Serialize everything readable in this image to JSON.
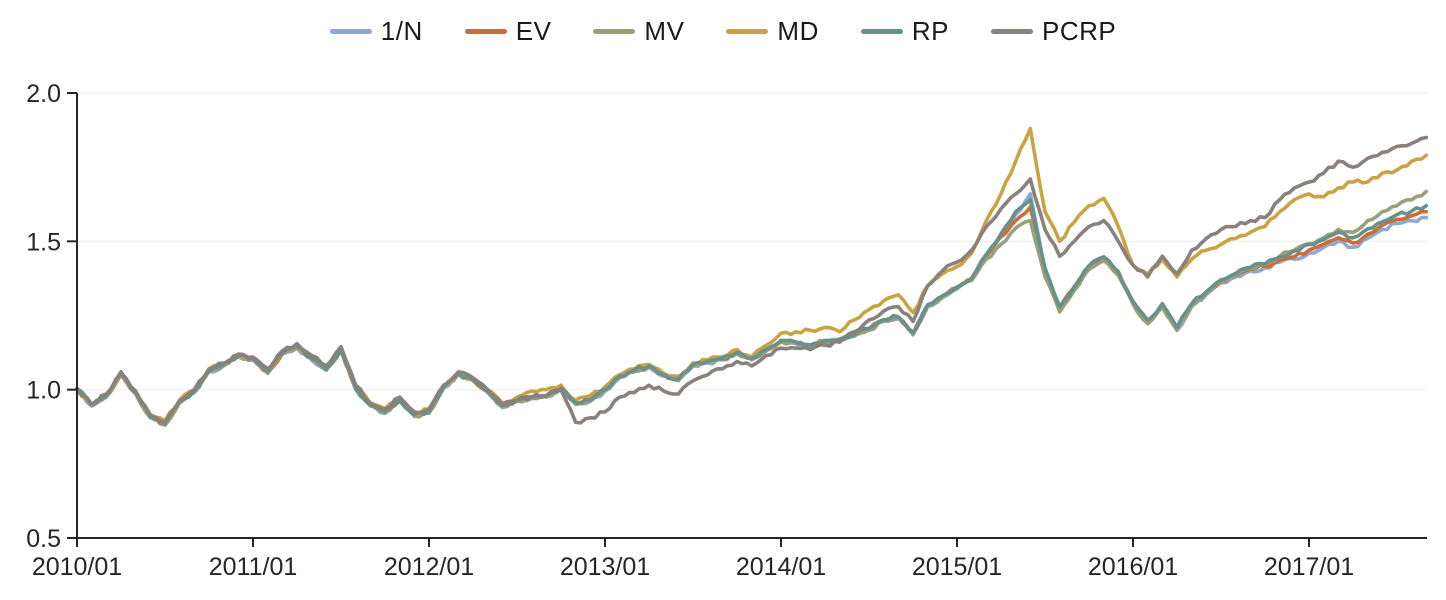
{
  "chart_data": {
    "type": "line",
    "title": "",
    "xlabel": "",
    "ylabel": "",
    "ylim": [
      0.5,
      2.0
    ],
    "grid": "horizontal",
    "legend_position": "top-center",
    "y_ticks": [
      {
        "label": "0.5",
        "value": 0.5
      },
      {
        "label": "1.0",
        "value": 1.0
      },
      {
        "label": "1.5",
        "value": 1.5
      },
      {
        "label": "2.0",
        "value": 2.0
      }
    ],
    "x_ticks": [
      {
        "label": "2010/01",
        "month": 0
      },
      {
        "label": "2011/01",
        "month": 12
      },
      {
        "label": "2012/01",
        "month": 24
      },
      {
        "label": "2013/01",
        "month": 36
      },
      {
        "label": "2014/01",
        "month": 48
      },
      {
        "label": "2015/01",
        "month": 60
      },
      {
        "label": "2016/01",
        "month": 72
      },
      {
        "label": "2017/01",
        "month": 84
      }
    ],
    "x_frequency": "monthly",
    "months": [
      "2010/01",
      "2010/02",
      "2010/03",
      "2010/04",
      "2010/05",
      "2010/06",
      "2010/07",
      "2010/08",
      "2010/09",
      "2010/10",
      "2010/11",
      "2010/12",
      "2011/01",
      "2011/02",
      "2011/03",
      "2011/04",
      "2011/05",
      "2011/06",
      "2011/07",
      "2011/08",
      "2011/09",
      "2011/10",
      "2011/11",
      "2011/12",
      "2012/01",
      "2012/02",
      "2012/03",
      "2012/04",
      "2012/05",
      "2012/06",
      "2012/07",
      "2012/08",
      "2012/09",
      "2012/10",
      "2012/11",
      "2012/12",
      "2013/01",
      "2013/02",
      "2013/03",
      "2013/04",
      "2013/05",
      "2013/06",
      "2013/07",
      "2013/08",
      "2013/09",
      "2013/10",
      "2013/11",
      "2013/12",
      "2014/01",
      "2014/02",
      "2014/03",
      "2014/04",
      "2014/05",
      "2014/06",
      "2014/07",
      "2014/08",
      "2014/09",
      "2014/10",
      "2014/11",
      "2014/12",
      "2015/01",
      "2015/02",
      "2015/03",
      "2015/04",
      "2015/05",
      "2015/06",
      "2015/07",
      "2015/08",
      "2015/09",
      "2015/10",
      "2015/11",
      "2015/12",
      "2016/01",
      "2016/02",
      "2016/03",
      "2016/04",
      "2016/05",
      "2016/06",
      "2016/07",
      "2016/08",
      "2016/09",
      "2016/10",
      "2016/11",
      "2016/12",
      "2017/01",
      "2017/02",
      "2017/03",
      "2017/04",
      "2017/05",
      "2017/06",
      "2017/07",
      "2017/08",
      "2017/09"
    ],
    "series": [
      {
        "name": "1/N",
        "color": "#8EA9D0",
        "values": [
          1.0,
          0.945,
          0.975,
          1.05,
          0.985,
          0.905,
          0.88,
          0.955,
          0.99,
          1.06,
          1.08,
          1.11,
          1.1,
          1.055,
          1.12,
          1.14,
          1.1,
          1.065,
          1.13,
          1.0,
          0.945,
          0.92,
          0.96,
          0.91,
          0.92,
          1.005,
          1.05,
          1.03,
          0.99,
          0.94,
          0.96,
          0.97,
          0.975,
          1.0,
          0.95,
          0.96,
          0.995,
          1.04,
          1.06,
          1.075,
          1.045,
          1.03,
          1.08,
          1.09,
          1.1,
          1.12,
          1.1,
          1.13,
          1.16,
          1.155,
          1.145,
          1.16,
          1.165,
          1.18,
          1.2,
          1.23,
          1.24,
          1.185,
          1.28,
          1.31,
          1.34,
          1.37,
          1.45,
          1.52,
          1.59,
          1.66,
          1.4,
          1.27,
          1.34,
          1.41,
          1.44,
          1.39,
          1.29,
          1.225,
          1.28,
          1.2,
          1.28,
          1.32,
          1.36,
          1.38,
          1.4,
          1.41,
          1.43,
          1.44,
          1.46,
          1.48,
          1.5,
          1.48,
          1.51,
          1.54,
          1.56,
          1.57,
          1.58
        ]
      },
      {
        "name": "EV",
        "color": "#CA6D39",
        "values": [
          1.002,
          0.948,
          0.978,
          1.052,
          0.988,
          0.908,
          0.884,
          0.958,
          0.993,
          1.063,
          1.083,
          1.112,
          1.103,
          1.058,
          1.122,
          1.143,
          1.103,
          1.068,
          1.133,
          1.004,
          0.948,
          0.924,
          0.963,
          0.914,
          0.924,
          1.008,
          1.053,
          1.033,
          0.993,
          0.944,
          0.963,
          0.974,
          0.978,
          1.003,
          0.954,
          0.964,
          0.999,
          1.044,
          1.064,
          1.078,
          1.049,
          1.034,
          1.083,
          1.094,
          1.104,
          1.124,
          1.104,
          1.134,
          1.164,
          1.159,
          1.149,
          1.164,
          1.169,
          1.184,
          1.204,
          1.234,
          1.244,
          1.19,
          1.284,
          1.314,
          1.344,
          1.374,
          1.452,
          1.515,
          1.57,
          1.615,
          1.402,
          1.275,
          1.344,
          1.414,
          1.444,
          1.394,
          1.294,
          1.23,
          1.285,
          1.205,
          1.285,
          1.325,
          1.365,
          1.386,
          1.406,
          1.416,
          1.437,
          1.448,
          1.47,
          1.49,
          1.512,
          1.494,
          1.524,
          1.554,
          1.574,
          1.586,
          1.6
        ]
      },
      {
        "name": "MV",
        "color": "#9BA07A",
        "values": [
          1.001,
          0.947,
          0.977,
          1.051,
          0.986,
          0.907,
          0.882,
          0.957,
          0.992,
          1.062,
          1.082,
          1.111,
          1.102,
          1.057,
          1.121,
          1.142,
          1.102,
          1.067,
          1.132,
          1.002,
          0.947,
          0.922,
          0.962,
          0.912,
          0.922,
          1.007,
          1.052,
          1.032,
          0.992,
          0.942,
          0.962,
          0.972,
          0.977,
          1.002,
          0.952,
          0.962,
          0.997,
          1.042,
          1.062,
          1.077,
          1.047,
          1.032,
          1.082,
          1.092,
          1.102,
          1.122,
          1.102,
          1.132,
          1.162,
          1.157,
          1.147,
          1.162,
          1.167,
          1.182,
          1.202,
          1.232,
          1.242,
          1.188,
          1.282,
          1.312,
          1.342,
          1.368,
          1.44,
          1.49,
          1.545,
          1.57,
          1.38,
          1.262,
          1.335,
          1.405,
          1.435,
          1.385,
          1.288,
          1.222,
          1.278,
          1.2,
          1.282,
          1.325,
          1.365,
          1.388,
          1.41,
          1.422,
          1.45,
          1.47,
          1.492,
          1.512,
          1.54,
          1.53,
          1.57,
          1.6,
          1.62,
          1.64,
          1.668
        ]
      },
      {
        "name": "MD",
        "color": "#C9A443",
        "values": [
          1.0,
          0.95,
          0.98,
          1.055,
          0.99,
          0.915,
          0.895,
          0.965,
          1.0,
          1.07,
          1.085,
          1.115,
          1.105,
          1.065,
          1.125,
          1.145,
          1.105,
          1.075,
          1.135,
          1.01,
          0.955,
          0.935,
          0.97,
          0.92,
          0.935,
          1.01,
          1.055,
          1.035,
          1.0,
          0.955,
          0.975,
          0.995,
          1.0,
          1.015,
          0.965,
          0.98,
          1.01,
          1.05,
          1.07,
          1.085,
          1.055,
          1.045,
          1.09,
          1.1,
          1.11,
          1.135,
          1.11,
          1.15,
          1.19,
          1.195,
          1.2,
          1.21,
          1.195,
          1.235,
          1.27,
          1.3,
          1.32,
          1.26,
          1.35,
          1.39,
          1.415,
          1.46,
          1.57,
          1.66,
          1.77,
          1.88,
          1.6,
          1.5,
          1.565,
          1.62,
          1.645,
          1.55,
          1.42,
          1.39,
          1.44,
          1.38,
          1.44,
          1.47,
          1.49,
          1.51,
          1.53,
          1.55,
          1.6,
          1.64,
          1.66,
          1.65,
          1.68,
          1.7,
          1.7,
          1.73,
          1.74,
          1.77,
          1.79
        ]
      },
      {
        "name": "RP",
        "color": "#67918A",
        "values": [
          1.004,
          0.95,
          0.98,
          1.054,
          0.989,
          0.91,
          0.886,
          0.96,
          0.995,
          1.065,
          1.085,
          1.114,
          1.105,
          1.06,
          1.124,
          1.145,
          1.105,
          1.07,
          1.135,
          1.006,
          0.95,
          0.926,
          0.965,
          0.916,
          0.926,
          1.01,
          1.055,
          1.035,
          0.995,
          0.946,
          0.965,
          0.976,
          0.98,
          1.005,
          0.956,
          0.966,
          1.001,
          1.046,
          1.066,
          1.08,
          1.051,
          1.036,
          1.085,
          1.096,
          1.106,
          1.126,
          1.106,
          1.136,
          1.166,
          1.161,
          1.151,
          1.166,
          1.171,
          1.186,
          1.206,
          1.236,
          1.246,
          1.192,
          1.286,
          1.316,
          1.346,
          1.376,
          1.456,
          1.525,
          1.6,
          1.64,
          1.41,
          1.28,
          1.348,
          1.418,
          1.448,
          1.398,
          1.298,
          1.234,
          1.29,
          1.21,
          1.29,
          1.33,
          1.37,
          1.392,
          1.412,
          1.424,
          1.446,
          1.468,
          1.49,
          1.506,
          1.53,
          1.512,
          1.542,
          1.566,
          1.59,
          1.602,
          1.62
        ]
      },
      {
        "name": "PCRP",
        "color": "#8A817C",
        "values": [
          1.005,
          0.95,
          0.985,
          1.06,
          0.995,
          0.915,
          0.89,
          0.965,
          1.0,
          1.07,
          1.09,
          1.12,
          1.11,
          1.07,
          1.13,
          1.155,
          1.115,
          1.08,
          1.145,
          1.015,
          0.955,
          0.935,
          0.975,
          0.925,
          0.935,
          1.015,
          1.06,
          1.04,
          1.0,
          0.95,
          0.965,
          0.975,
          0.98,
          1.0,
          0.89,
          0.905,
          0.925,
          0.975,
          0.99,
          1.015,
          0.995,
          0.985,
          1.03,
          1.05,
          1.07,
          1.095,
          1.08,
          1.115,
          1.14,
          1.14,
          1.135,
          1.15,
          1.16,
          1.195,
          1.235,
          1.265,
          1.28,
          1.23,
          1.35,
          1.4,
          1.43,
          1.47,
          1.55,
          1.61,
          1.66,
          1.71,
          1.54,
          1.45,
          1.5,
          1.55,
          1.57,
          1.5,
          1.42,
          1.38,
          1.45,
          1.39,
          1.47,
          1.51,
          1.54,
          1.55,
          1.57,
          1.58,
          1.64,
          1.68,
          1.7,
          1.73,
          1.77,
          1.75,
          1.78,
          1.8,
          1.82,
          1.83,
          1.85
        ]
      }
    ],
    "style": {
      "line_width": 3.6,
      "jitter_amplitude": 0.007,
      "jitter_substeps": 3,
      "grid_color": "#F2F2F2",
      "axis_color": "#262626",
      "label_color": "#262626",
      "background": "#FFFFFF",
      "tick_font_size": 25,
      "legend_font_size": 26
    }
  }
}
